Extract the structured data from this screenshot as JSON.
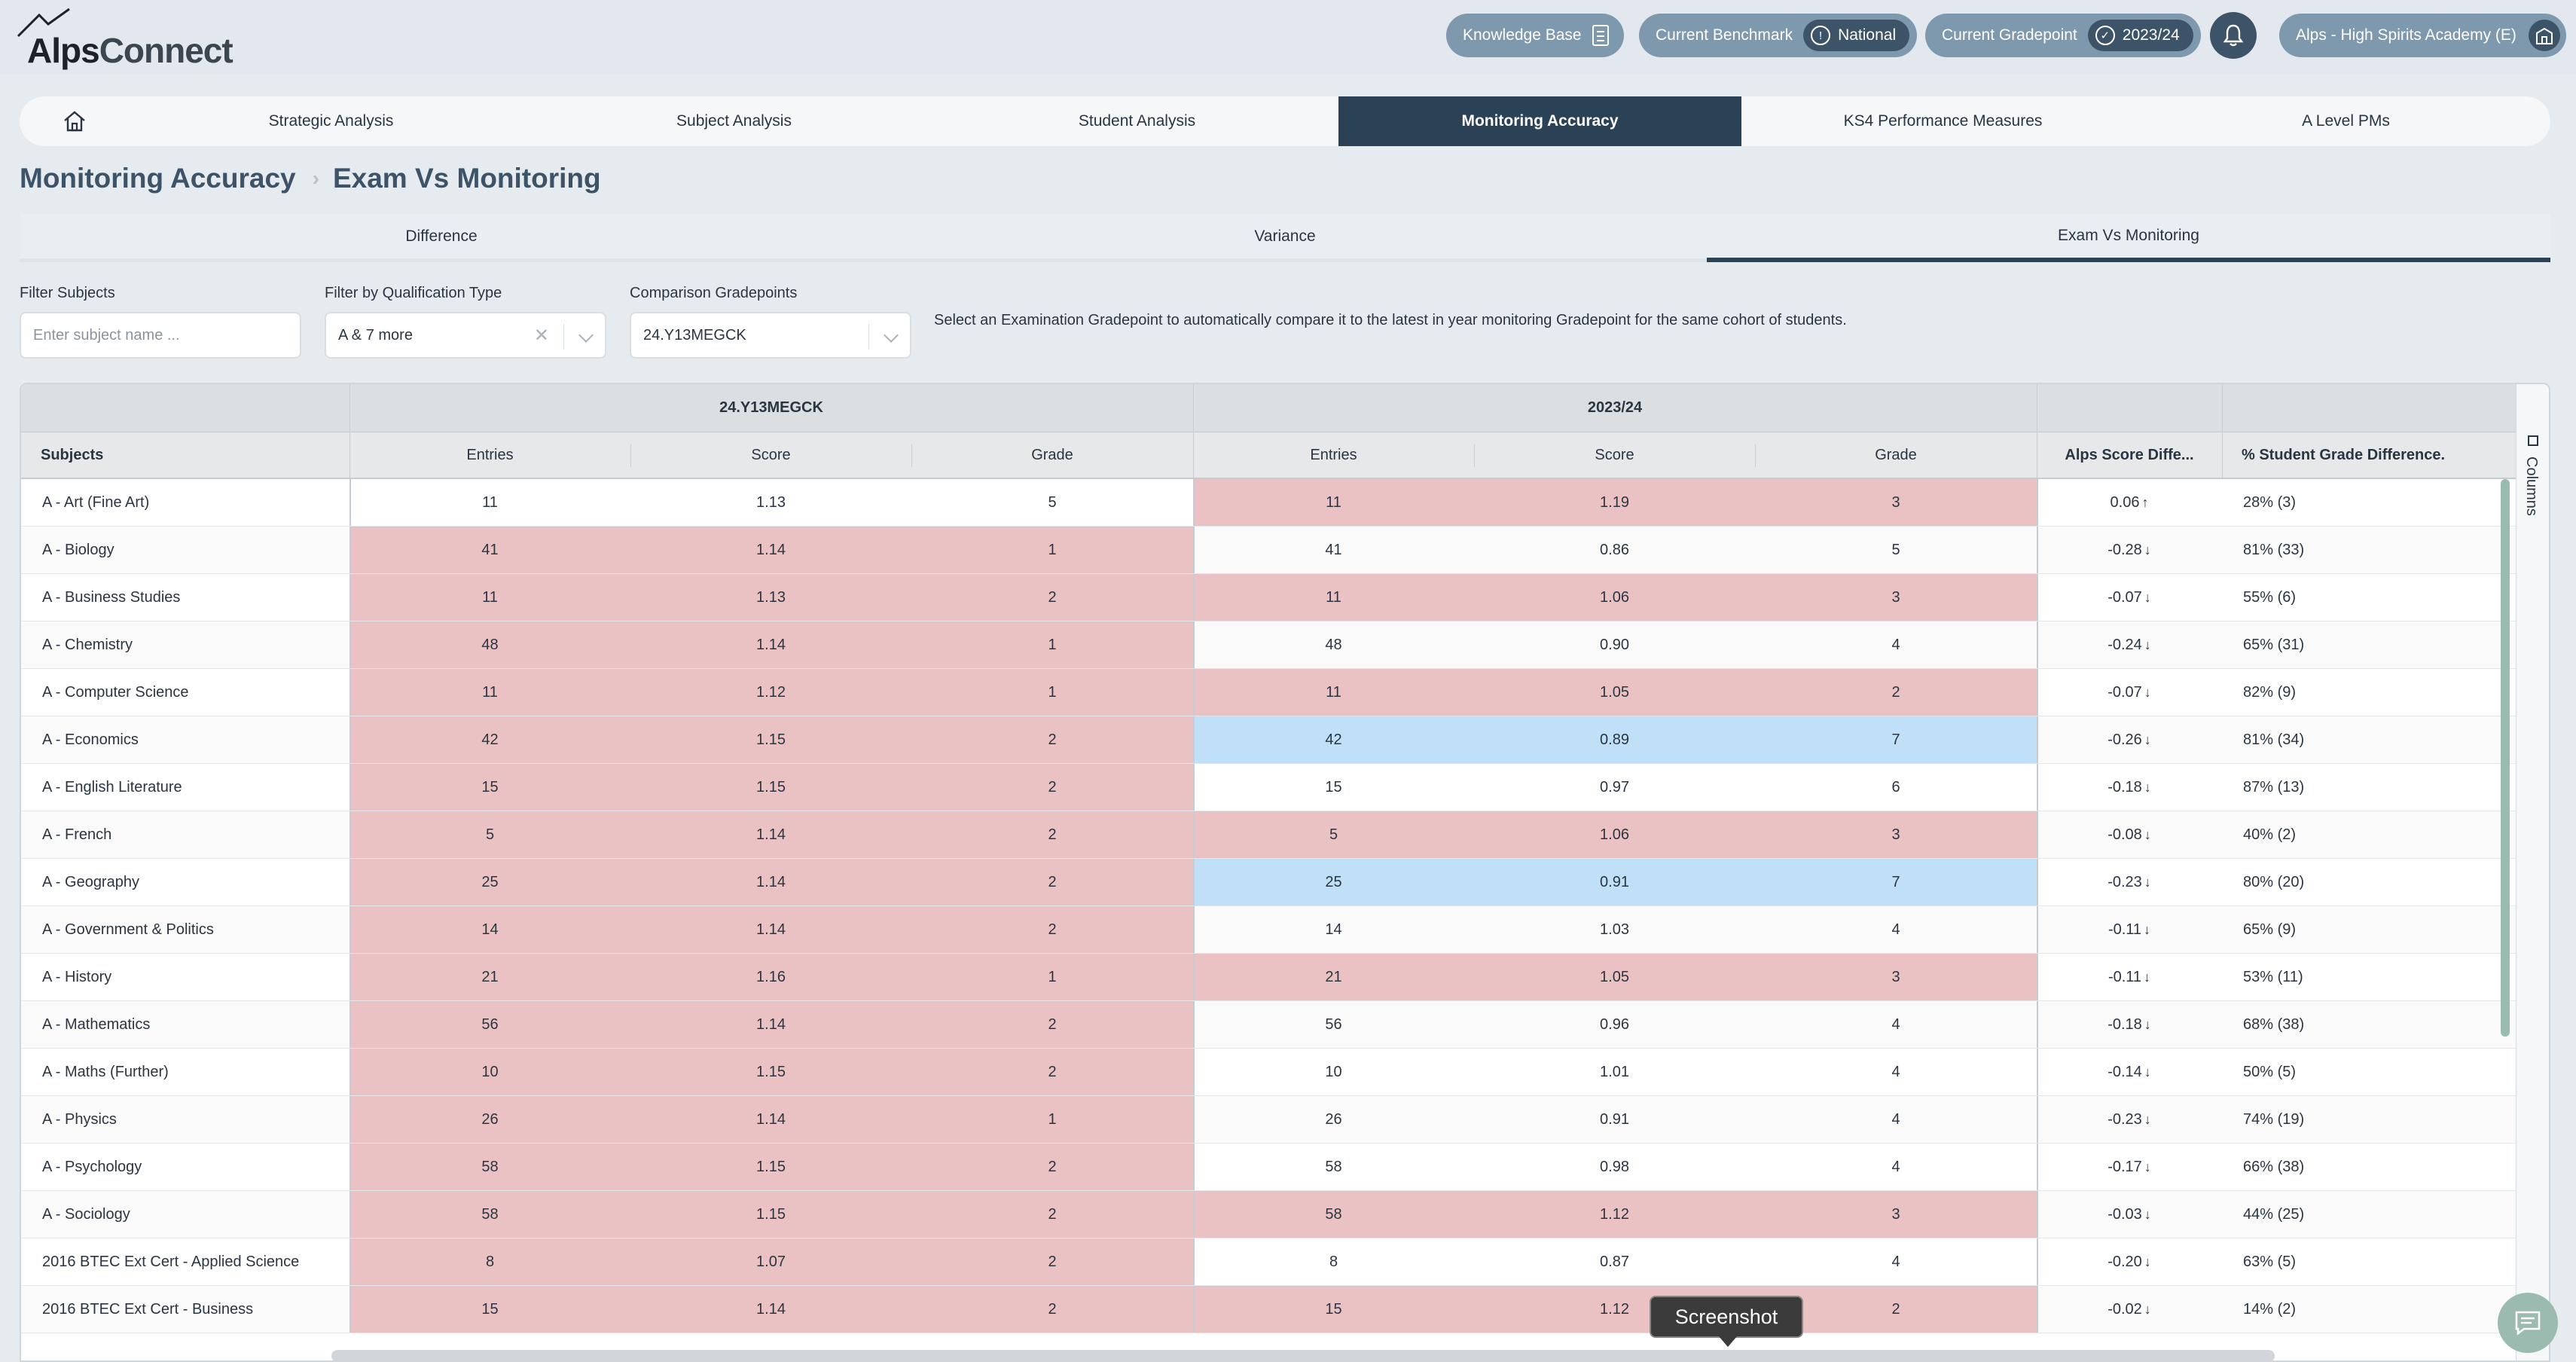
{
  "brand": {
    "alps": "Alps",
    "connect": "Connect"
  },
  "header": {
    "knowledge_base": "Knowledge Base",
    "benchmark_label": "Current Benchmark",
    "benchmark_value": "National",
    "gradepoint_label": "Current Gradepoint",
    "gradepoint_value": "2023/24",
    "school": "Alps - High Spirits Academy (E)"
  },
  "nav": {
    "tabs": [
      "Strategic Analysis",
      "Subject Analysis",
      "Student Analysis",
      "Monitoring Accuracy",
      "KS4 Performance Measures",
      "A Level PMs"
    ],
    "active": "Monitoring Accuracy"
  },
  "breadcrumb": {
    "parent": "Monitoring Accuracy",
    "current": "Exam Vs Monitoring"
  },
  "subtabs": [
    "Difference",
    "Variance",
    "Exam Vs Monitoring"
  ],
  "filters": {
    "subjects_label": "Filter Subjects",
    "subjects_placeholder": "Enter subject name ...",
    "qual_label": "Filter by Qualification Type",
    "qual_value": "A & 7 more",
    "comp_label": "Comparison Gradepoints",
    "comp_value": "24.Y13MEGCK",
    "hint": "Select an Examination Gradepoint to automatically compare it to the latest in year monitoring Gradepoint for the same cohort of students."
  },
  "table": {
    "group1": "24.Y13MEGCK",
    "group2": "2023/24",
    "headers": {
      "subjects": "Subjects",
      "entries": "Entries",
      "score": "Score",
      "grade": "Grade",
      "alps_diff": "Alps Score Diffe...",
      "pct_diff": "% Student Grade Difference."
    },
    "rows": [
      {
        "subject": "A - Art (Fine Art)",
        "e1": "11",
        "s1": "1.13",
        "g1": "5",
        "e2": "11",
        "s2": "1.19",
        "g2": "3",
        "diff": "0.06",
        "dir": "up",
        "pct": "28% (3)",
        "h1": "none",
        "h2": "red"
      },
      {
        "subject": "A - Biology",
        "e1": "41",
        "s1": "1.14",
        "g1": "1",
        "e2": "41",
        "s2": "0.86",
        "g2": "5",
        "diff": "-0.28",
        "dir": "down",
        "pct": "81% (33)",
        "h1": "red",
        "h2": "none"
      },
      {
        "subject": "A - Business Studies",
        "e1": "11",
        "s1": "1.13",
        "g1": "2",
        "e2": "11",
        "s2": "1.06",
        "g2": "3",
        "diff": "-0.07",
        "dir": "down",
        "pct": "55% (6)",
        "h1": "red",
        "h2": "red"
      },
      {
        "subject": "A - Chemistry",
        "e1": "48",
        "s1": "1.14",
        "g1": "1",
        "e2": "48",
        "s2": "0.90",
        "g2": "4",
        "diff": "-0.24",
        "dir": "down",
        "pct": "65% (31)",
        "h1": "red",
        "h2": "none"
      },
      {
        "subject": "A - Computer Science",
        "e1": "11",
        "s1": "1.12",
        "g1": "1",
        "e2": "11",
        "s2": "1.05",
        "g2": "2",
        "diff": "-0.07",
        "dir": "down",
        "pct": "82% (9)",
        "h1": "red",
        "h2": "red"
      },
      {
        "subject": "A - Economics",
        "e1": "42",
        "s1": "1.15",
        "g1": "2",
        "e2": "42",
        "s2": "0.89",
        "g2": "7",
        "diff": "-0.26",
        "dir": "down",
        "pct": "81% (34)",
        "h1": "red",
        "h2": "blue"
      },
      {
        "subject": "A - English Literature",
        "e1": "15",
        "s1": "1.15",
        "g1": "2",
        "e2": "15",
        "s2": "0.97",
        "g2": "6",
        "diff": "-0.18",
        "dir": "down",
        "pct": "87% (13)",
        "h1": "red",
        "h2": "none"
      },
      {
        "subject": "A - French",
        "e1": "5",
        "s1": "1.14",
        "g1": "2",
        "e2": "5",
        "s2": "1.06",
        "g2": "3",
        "diff": "-0.08",
        "dir": "down",
        "pct": "40% (2)",
        "h1": "red",
        "h2": "red"
      },
      {
        "subject": "A - Geography",
        "e1": "25",
        "s1": "1.14",
        "g1": "2",
        "e2": "25",
        "s2": "0.91",
        "g2": "7",
        "diff": "-0.23",
        "dir": "down",
        "pct": "80% (20)",
        "h1": "red",
        "h2": "blue"
      },
      {
        "subject": "A - Government & Politics",
        "e1": "14",
        "s1": "1.14",
        "g1": "2",
        "e2": "14",
        "s2": "1.03",
        "g2": "4",
        "diff": "-0.11",
        "dir": "down",
        "pct": "65% (9)",
        "h1": "red",
        "h2": "none"
      },
      {
        "subject": "A - History",
        "e1": "21",
        "s1": "1.16",
        "g1": "1",
        "e2": "21",
        "s2": "1.05",
        "g2": "3",
        "diff": "-0.11",
        "dir": "down",
        "pct": "53% (11)",
        "h1": "red",
        "h2": "red"
      },
      {
        "subject": "A - Mathematics",
        "e1": "56",
        "s1": "1.14",
        "g1": "2",
        "e2": "56",
        "s2": "0.96",
        "g2": "4",
        "diff": "-0.18",
        "dir": "down",
        "pct": "68% (38)",
        "h1": "red",
        "h2": "none"
      },
      {
        "subject": "A - Maths (Further)",
        "e1": "10",
        "s1": "1.15",
        "g1": "2",
        "e2": "10",
        "s2": "1.01",
        "g2": "4",
        "diff": "-0.14",
        "dir": "down",
        "pct": "50% (5)",
        "h1": "red",
        "h2": "none"
      },
      {
        "subject": "A - Physics",
        "e1": "26",
        "s1": "1.14",
        "g1": "1",
        "e2": "26",
        "s2": "0.91",
        "g2": "4",
        "diff": "-0.23",
        "dir": "down",
        "pct": "74% (19)",
        "h1": "red",
        "h2": "none"
      },
      {
        "subject": "A - Psychology",
        "e1": "58",
        "s1": "1.15",
        "g1": "2",
        "e2": "58",
        "s2": "0.98",
        "g2": "4",
        "diff": "-0.17",
        "dir": "down",
        "pct": "66% (38)",
        "h1": "red",
        "h2": "none"
      },
      {
        "subject": "A - Sociology",
        "e1": "58",
        "s1": "1.15",
        "g1": "2",
        "e2": "58",
        "s2": "1.12",
        "g2": "3",
        "diff": "-0.03",
        "dir": "down",
        "pct": "44% (25)",
        "h1": "red",
        "h2": "red"
      },
      {
        "subject": "2016 BTEC Ext Cert - Applied Science",
        "e1": "8",
        "s1": "1.07",
        "g1": "2",
        "e2": "8",
        "s2": "0.87",
        "g2": "4",
        "diff": "-0.20",
        "dir": "down",
        "pct": "63% (5)",
        "h1": "red",
        "h2": "none"
      },
      {
        "subject": "2016 BTEC Ext Cert - Business",
        "e1": "15",
        "s1": "1.14",
        "g1": "2",
        "e2": "15",
        "s2": "1.12",
        "g2": "2",
        "diff": "-0.02",
        "dir": "down",
        "pct": "14% (2)",
        "h1": "red",
        "h2": "red"
      }
    ]
  },
  "side_panel": {
    "columns_label": "Columns"
  },
  "tooltip": {
    "screenshot": "Screenshot"
  },
  "colors": {
    "highlight_red": "#ebc2c4",
    "highlight_blue": "#bfe0f6",
    "nav_active": "#2b4256",
    "accent_pill": "#7e98ae"
  }
}
